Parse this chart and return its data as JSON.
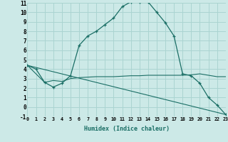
{
  "xlabel": "Humidex (Indice chaleur)",
  "bg_color": "#cce9e7",
  "grid_color": "#aad4d1",
  "line_color": "#1a6e65",
  "line1_x": [
    0,
    1,
    2,
    3,
    4,
    5,
    6,
    7,
    8,
    9,
    10,
    11,
    12,
    13,
    14,
    15,
    16,
    17,
    18,
    19,
    20,
    21,
    22,
    23
  ],
  "line1_y": [
    4.4,
    4.0,
    2.6,
    2.1,
    2.5,
    3.3,
    6.5,
    7.5,
    8.0,
    8.7,
    9.4,
    10.6,
    11.1,
    11.1,
    11.1,
    10.0,
    8.9,
    7.5,
    3.5,
    3.3,
    2.5,
    1.0,
    0.2,
    -0.8
  ],
  "line2_x": [
    0,
    2,
    3,
    4,
    5,
    6,
    7,
    8,
    9,
    10,
    11,
    12,
    13,
    14,
    15,
    16,
    17,
    18,
    19,
    20,
    22,
    23
  ],
  "line2_y": [
    4.4,
    2.6,
    2.8,
    2.7,
    3.0,
    3.1,
    3.15,
    3.2,
    3.2,
    3.2,
    3.25,
    3.3,
    3.3,
    3.35,
    3.35,
    3.35,
    3.35,
    3.35,
    3.4,
    3.5,
    3.2,
    3.2
  ],
  "line3_x": [
    0,
    23
  ],
  "line3_y": [
    4.4,
    -0.8
  ],
  "xlim": [
    0,
    23
  ],
  "ylim": [
    -1,
    11
  ],
  "xtick_labels": [
    "0",
    "1",
    "2",
    "3",
    "4",
    "5",
    "6",
    "7",
    "8",
    "9",
    "10",
    "11",
    "12",
    "13",
    "14",
    "15",
    "16",
    "17",
    "18",
    "19",
    "20",
    "21",
    "22",
    "23"
  ],
  "ytick_labels": [
    "-1",
    "0",
    "1",
    "2",
    "3",
    "4",
    "5",
    "6",
    "7",
    "8",
    "9",
    "10",
    "11"
  ]
}
